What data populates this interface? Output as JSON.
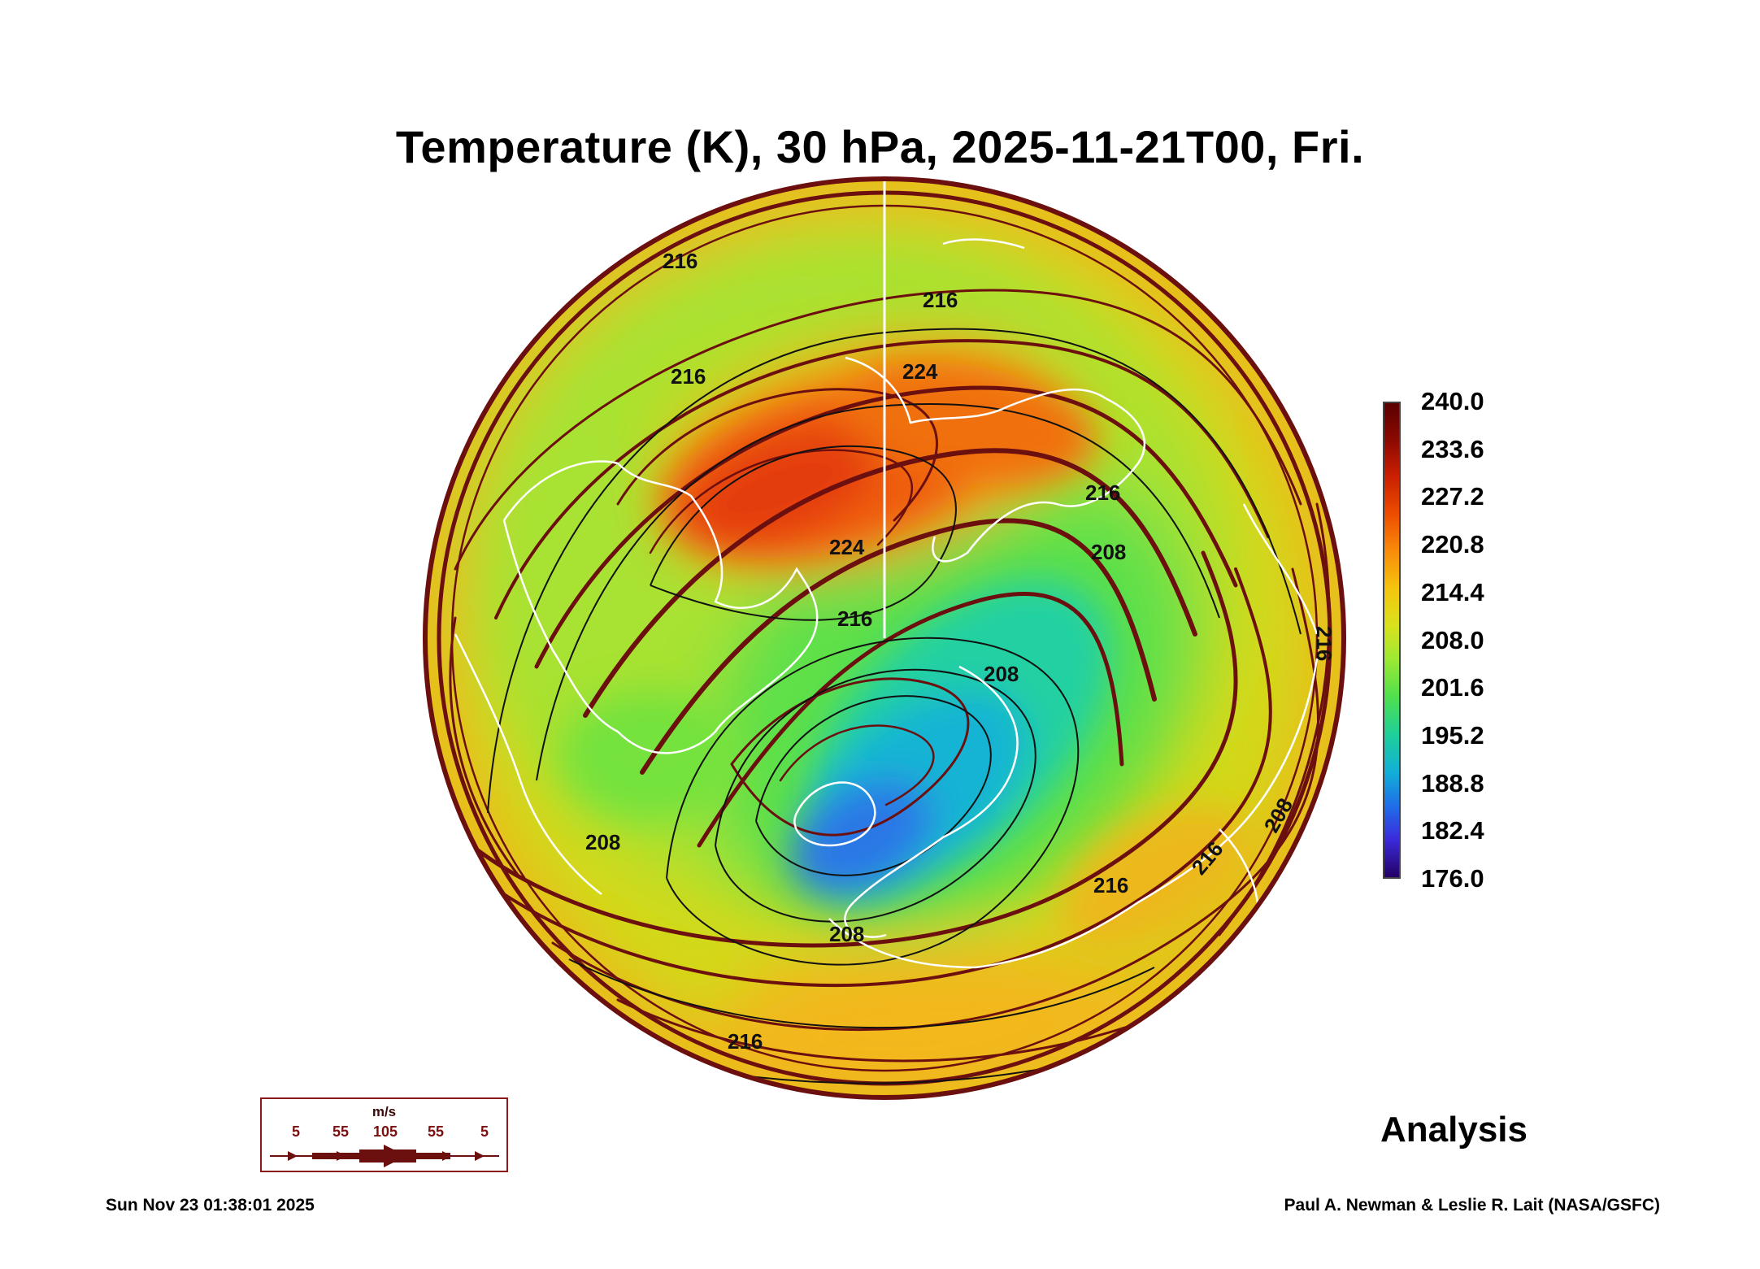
{
  "title": "Temperature (K), 30 hPa, 2025-11-21T00, Fri.",
  "colorbar": {
    "labels": [
      "240.0",
      "233.6",
      "227.2",
      "220.8",
      "214.4",
      "208.0",
      "201.6",
      "195.2",
      "188.8",
      "182.4",
      "176.0"
    ],
    "min": 176.0,
    "max": 240.0
  },
  "contour_labels": [
    "216",
    "216",
    "216",
    "224",
    "224",
    "216",
    "216",
    "208",
    "216",
    "208",
    "208",
    "216",
    "216",
    "208",
    "208",
    "216"
  ],
  "wind_legend": {
    "unit": "m/s",
    "speeds": [
      "5",
      "55",
      "105",
      "55",
      "5"
    ]
  },
  "analysis_label": "Analysis",
  "footer": {
    "timestamp": "Sun Nov 23 01:38:01 2025",
    "credit": "Paul A. Newman & Leslie R. Lait (NASA/GSFC)"
  },
  "colors": {
    "warm_pole": "#e8400c",
    "cold_pole": "#1f6ee8",
    "streamline": "#6b0f0f",
    "coastline": "#ffffff"
  }
}
